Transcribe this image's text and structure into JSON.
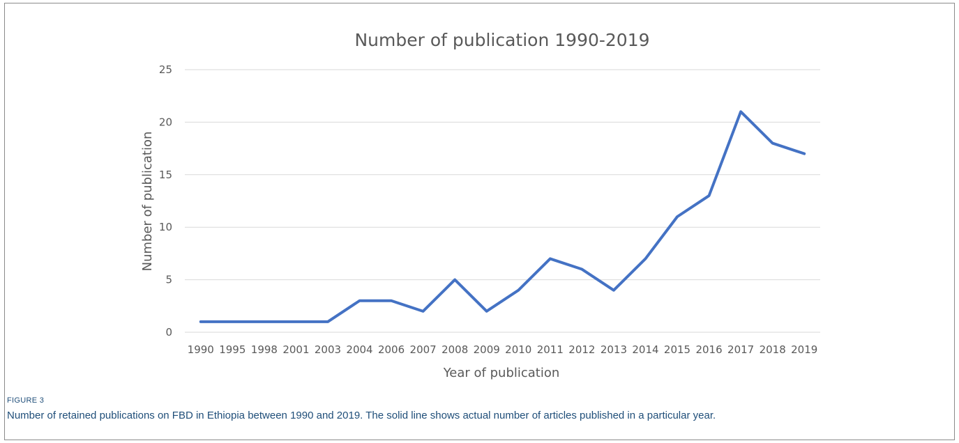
{
  "chart_data": {
    "type": "line",
    "title": "Number of publication 1990-2019",
    "xlabel": "Year of publication",
    "ylabel": "Number of publication",
    "categories": [
      "1990",
      "1995",
      "1998",
      "2001",
      "2003",
      "2004",
      "2006",
      "2007",
      "2008",
      "2009",
      "2010",
      "2011",
      "2012",
      "2013",
      "2014",
      "2015",
      "2016",
      "2017",
      "2018",
      "2019"
    ],
    "values": [
      1,
      1,
      1,
      1,
      1,
      3,
      3,
      2,
      5,
      2,
      4,
      7,
      6,
      4,
      7,
      11,
      13,
      21,
      18,
      17
    ],
    "ylim": [
      0,
      25
    ],
    "yticks": [
      0,
      5,
      10,
      15,
      20,
      25
    ],
    "grid": "horizontal",
    "line_color": "#4472c4"
  },
  "figure": {
    "label": "FIGURE 3",
    "caption": "Number of retained publications on FBD in Ethiopia between 1990 and 2019. The solid line shows actual number of articles published in a particular year."
  }
}
